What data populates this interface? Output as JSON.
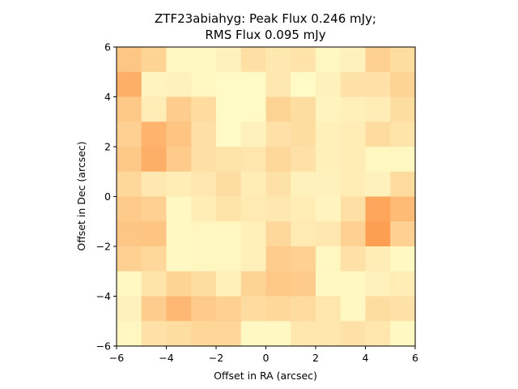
{
  "chart_data": {
    "type": "heatmap",
    "title_lines": [
      "ZTF23abiahyg: Peak Flux 0.246 mJy;",
      "RMS Flux 0.095 mJy"
    ],
    "xlabel": "Offset in RA (arcsec)",
    "ylabel": "Offset in Dec (arcsec)",
    "xlim": [
      -6,
      6
    ],
    "ylim": [
      -6,
      6
    ],
    "xticks": [
      -6,
      -4,
      -2,
      0,
      2,
      4,
      6
    ],
    "yticks": [
      -6,
      -4,
      -2,
      0,
      2,
      4,
      6
    ],
    "grid": false,
    "colormap": "YlOrRd",
    "color_low": "#ffffcc",
    "color_high": "#fd8d3c",
    "value_range": [
      0,
      1
    ],
    "rows_top_to_bottom": [
      [
        0.5,
        0.38,
        0.08,
        0.08,
        0.12,
        0.28,
        0.2,
        0.25,
        0.08,
        0.12,
        0.4,
        0.3
      ],
      [
        0.7,
        0.1,
        0.12,
        0.08,
        0.04,
        0.04,
        0.2,
        0.04,
        0.12,
        0.26,
        0.26,
        0.38
      ],
      [
        0.48,
        0.16,
        0.44,
        0.32,
        0.04,
        0.04,
        0.38,
        0.3,
        0.1,
        0.14,
        0.16,
        0.3
      ],
      [
        0.4,
        0.66,
        0.52,
        0.28,
        0.04,
        0.12,
        0.26,
        0.3,
        0.14,
        0.16,
        0.32,
        0.24
      ],
      [
        0.48,
        0.7,
        0.46,
        0.28,
        0.24,
        0.22,
        0.34,
        0.26,
        0.14,
        0.16,
        0.08,
        0.08
      ],
      [
        0.34,
        0.2,
        0.16,
        0.2,
        0.3,
        0.16,
        0.26,
        0.12,
        0.12,
        0.16,
        0.12,
        0.32
      ],
      [
        0.46,
        0.4,
        0.06,
        0.16,
        0.24,
        0.18,
        0.2,
        0.16,
        0.1,
        0.28,
        0.78,
        0.6
      ],
      [
        0.5,
        0.52,
        0.06,
        0.08,
        0.08,
        0.14,
        0.34,
        0.18,
        0.2,
        0.4,
        0.84,
        0.4
      ],
      [
        0.4,
        0.34,
        0.06,
        0.08,
        0.08,
        0.14,
        0.44,
        0.4,
        0.08,
        0.26,
        0.16,
        0.06
      ],
      [
        0.06,
        0.24,
        0.38,
        0.3,
        0.14,
        0.38,
        0.48,
        0.46,
        0.06,
        0.06,
        0.12,
        0.16
      ],
      [
        0.12,
        0.44,
        0.62,
        0.46,
        0.4,
        0.32,
        0.34,
        0.32,
        0.22,
        0.06,
        0.3,
        0.26
      ],
      [
        0.08,
        0.26,
        0.3,
        0.36,
        0.36,
        0.06,
        0.06,
        0.22,
        0.22,
        0.26,
        0.22,
        0.06
      ]
    ]
  }
}
